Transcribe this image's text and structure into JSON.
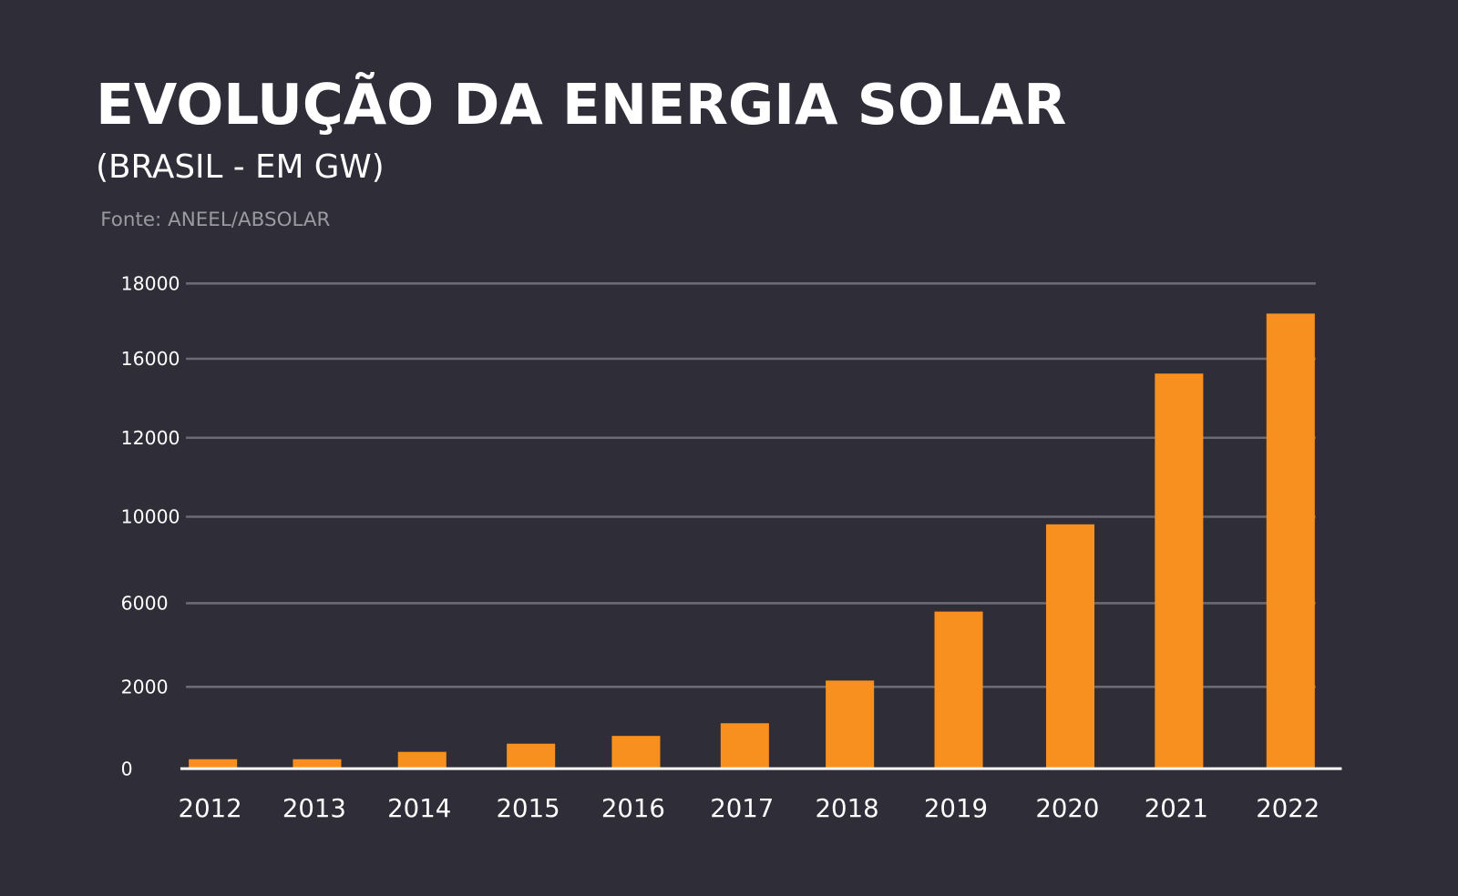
{
  "title": "EVOLUÇÃO DA ENERGIA SOLAR",
  "subtitle": "(BRASIL - EM GW)",
  "source": "Fonte: ANEEL/ABSOLAR",
  "colors": {
    "background": "#2e2d38",
    "bar": "#f7901e",
    "grid": "#6b6a75",
    "axis": "#ffffff",
    "text": "#ffffff"
  },
  "chart_data": {
    "type": "bar",
    "title": "EVOLUÇÃO DA ENERGIA SOLAR",
    "subtitle": "(BRASIL - EM GW)",
    "categories": [
      "2012",
      "2013",
      "2014",
      "2015",
      "2016",
      "2017",
      "2018",
      "2019",
      "2020",
      "2021",
      "2022"
    ],
    "values": [
      230,
      230,
      410,
      610,
      800,
      1110,
      2300,
      5600,
      9650,
      15250,
      17200
    ],
    "y_ticks": [
      "0",
      "2000",
      "6000",
      "10000",
      "12000",
      "16000",
      "18000"
    ],
    "ylim": [
      0,
      18000
    ],
    "grid": true,
    "legend": "none"
  }
}
